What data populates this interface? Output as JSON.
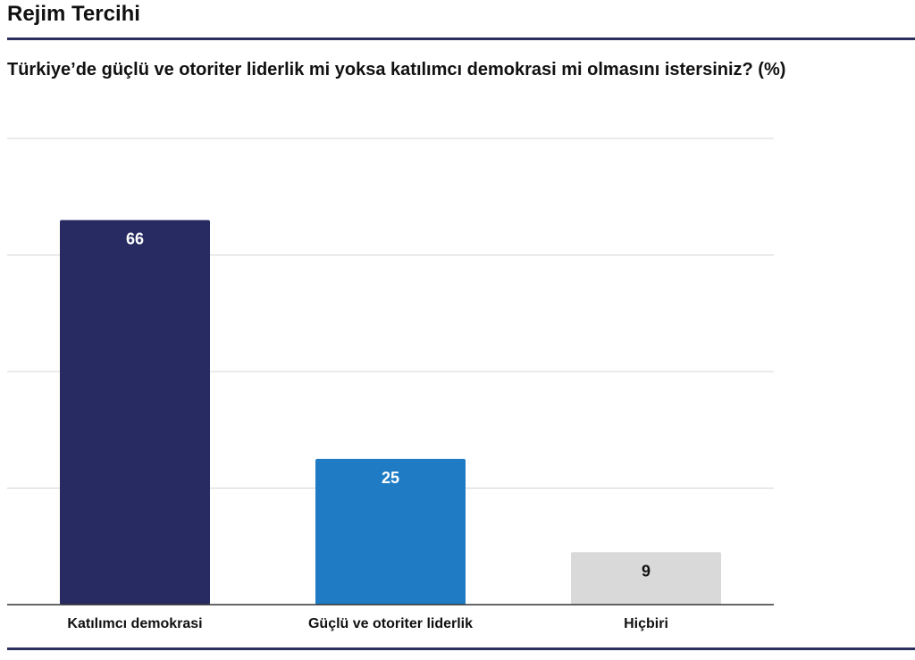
{
  "header": {
    "title": "Rejim Tercihi"
  },
  "colors": {
    "rule": "#2a2f5e",
    "grid": "#d4d4d4",
    "axis": "#333333"
  },
  "chart_data": {
    "type": "bar",
    "title": "Türkiye’de güçlü ve otoriter liderlik mi yoksa katılımcı demokrasi mi olmasını istersiniz? (%)",
    "xlabel": "",
    "ylabel": "",
    "categories": [
      "Katılımcı demokrasi",
      "Güçlü ve otoriter liderlik",
      "Hiçbiri"
    ],
    "values": [
      66,
      25,
      9
    ],
    "bar_colors": [
      "#272b61",
      "#1f7cc4",
      "#d9d9d9"
    ],
    "label_colors": [
      "#ffffff",
      "#ffffff",
      "#111111"
    ],
    "ylim": [
      0,
      80
    ],
    "gridlines": [
      0,
      20,
      40,
      60,
      80
    ],
    "grid": true,
    "legend": "none"
  }
}
